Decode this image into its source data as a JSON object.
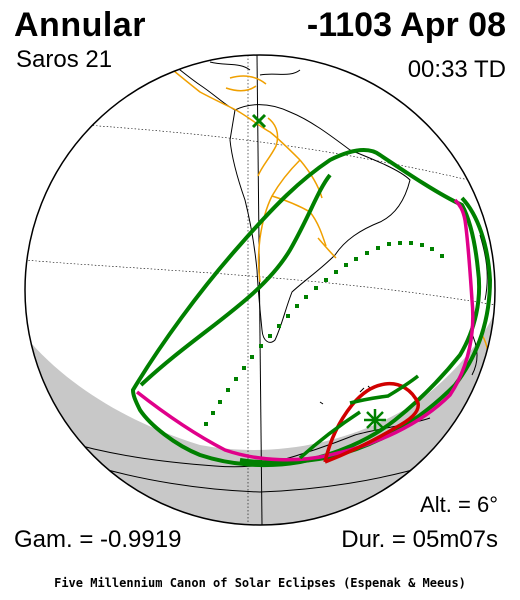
{
  "header": {
    "eclipse_type": "Annular",
    "saros": "Saros  21",
    "date": "-1103 Apr 08",
    "time": "00:33 TD"
  },
  "stats": {
    "altitude": "Alt. =  6°",
    "gamma": "Gam. = -0.9919",
    "duration": "Dur. = 05m07s"
  },
  "footer": {
    "credit": "Five Millennium Canon of Solar Eclipses (Espenak & Meeus)"
  },
  "colors": {
    "penumbra_limit": "#008000",
    "sunrise_sunset_limit": "#e0008a",
    "annular_limit": "#d00000",
    "central_line": "#008000",
    "night_shade": "#c8c8c8",
    "borders": "#f0a000",
    "coast": "#000000"
  },
  "icons": {
    "subsolar_marker": "x-marker-icon",
    "greatest_eclipse_marker": "star-marker-icon"
  }
}
